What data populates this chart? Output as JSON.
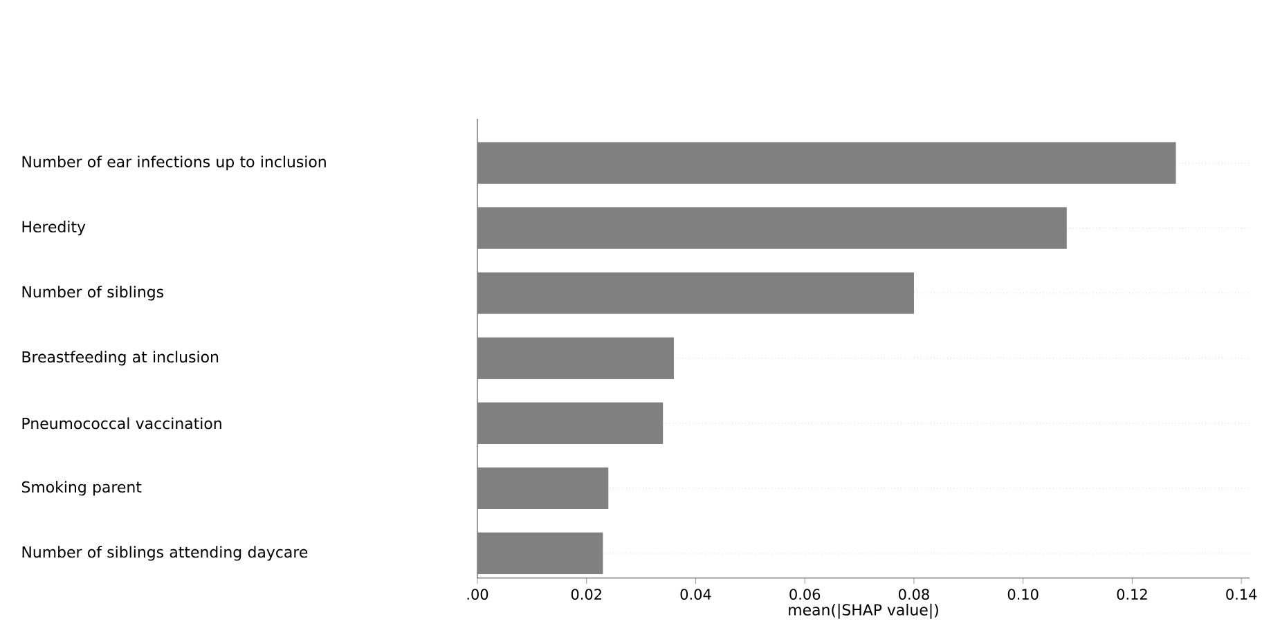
{
  "chart_data": {
    "type": "bar",
    "orientation": "horizontal",
    "xlabel": "mean(|SHAP value|)",
    "categories": [
      "Number of ear infections up to inclusion",
      "Heredity",
      "Number of siblings",
      "Breastfeeding at inclusion",
      "Pneumococcal vaccination",
      "Smoking parent",
      "Number of siblings attending daycare"
    ],
    "values": [
      0.128,
      0.108,
      0.08,
      0.036,
      0.034,
      0.024,
      0.023
    ],
    "color": "#808080",
    "xlim": [
      0,
      0.1415
    ],
    "xticks": [
      {
        "value": 0,
        "label": ".00"
      },
      0.02,
      0.04,
      0.06,
      0.08,
      {
        "value": 0.1,
        "label": "0.10"
      },
      0.12,
      0.14
    ],
    "grid": "y"
  }
}
